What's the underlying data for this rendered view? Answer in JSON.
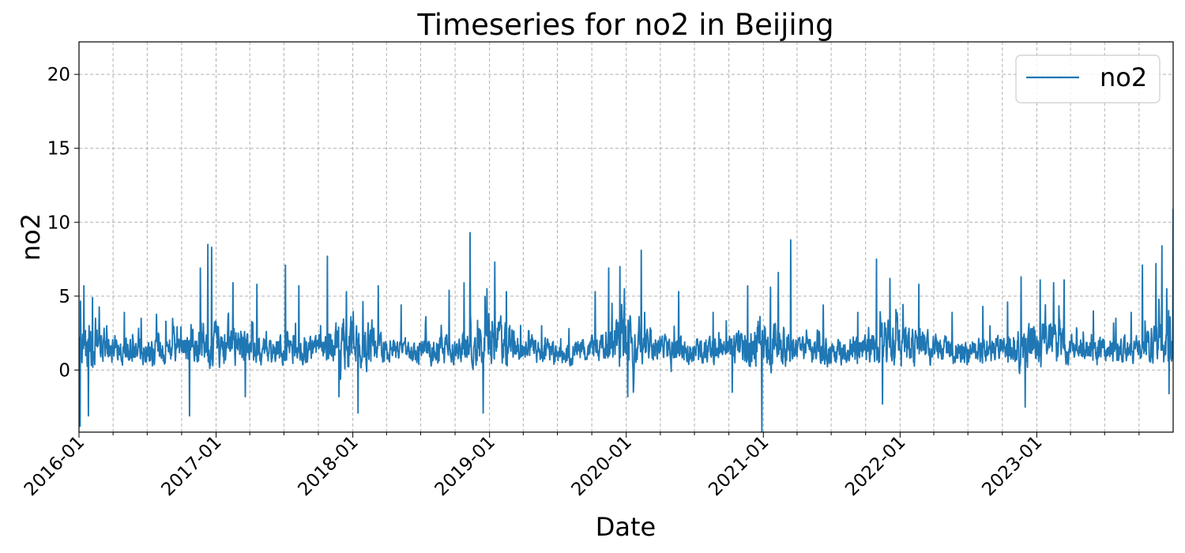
{
  "chart_data": {
    "type": "line",
    "title": "Timeseries for no2 in Beijing",
    "xlabel": "Date",
    "ylabel": "no2",
    "x_range": [
      "2016-01-01",
      "2023-12-31"
    ],
    "ylim": [
      -4.2,
      22.2
    ],
    "y_ticks": [
      0,
      5,
      10,
      15,
      20
    ],
    "x_ticks": [
      "2016-01",
      "2017-01",
      "2018-01",
      "2019-01",
      "2020-01",
      "2021-01",
      "2022-01",
      "2023-01"
    ],
    "minor_x_ticks_per_year": 4,
    "grid": true,
    "legend": {
      "position": "top-right",
      "entries": [
        "no2"
      ]
    },
    "series": [
      {
        "name": "no2",
        "color": "#1f77b4",
        "frequency": "daily",
        "start": "2016-01-01",
        "summary": {
          "typical_min": -1.5,
          "typical_max": 5.5,
          "mean": 1.5,
          "min": -4.2,
          "max": 10.9
        },
        "peaks": [
          [
            "2016-01-04",
            -3.8
          ],
          [
            "2016-01-14",
            5.7
          ],
          [
            "2016-01-26",
            -3.1
          ],
          [
            "2016-02-06",
            4.9
          ],
          [
            "2016-03-15",
            3.0
          ],
          [
            "2016-05-01",
            3.9
          ],
          [
            "2016-06-15",
            3.5
          ],
          [
            "2016-08-20",
            3.3
          ],
          [
            "2016-10-22",
            -3.1
          ],
          [
            "2016-11-20",
            6.9
          ],
          [
            "2016-12-10",
            8.5
          ],
          [
            "2016-12-20",
            8.3
          ],
          [
            "2017-02-15",
            5.9
          ],
          [
            "2017-03-20",
            -1.8
          ],
          [
            "2017-04-20",
            5.8
          ],
          [
            "2017-07-05",
            7.1
          ],
          [
            "2017-08-10",
            5.7
          ],
          [
            "2017-10-25",
            7.7
          ],
          [
            "2017-11-25",
            -1.8
          ],
          [
            "2017-12-15",
            5.3
          ],
          [
            "2018-01-15",
            -2.9
          ],
          [
            "2018-03-10",
            5.7
          ],
          [
            "2018-05-10",
            4.4
          ],
          [
            "2018-07-15",
            3.6
          ],
          [
            "2018-09-15",
            5.4
          ],
          [
            "2018-10-25",
            5.9
          ],
          [
            "2018-11-10",
            9.3
          ],
          [
            "2018-12-15",
            -2.9
          ],
          [
            "2019-01-15",
            7.3
          ],
          [
            "2019-02-15",
            5.3
          ],
          [
            "2019-05-20",
            3.0
          ],
          [
            "2019-08-01",
            2.8
          ],
          [
            "2019-10-10",
            5.3
          ],
          [
            "2019-11-15",
            6.9
          ],
          [
            "2019-12-15",
            7.0
          ],
          [
            "2020-01-05",
            -1.8
          ],
          [
            "2020-02-10",
            8.1
          ],
          [
            "2020-05-20",
            5.3
          ],
          [
            "2020-08-20",
            3.9
          ],
          [
            "2020-10-10",
            -1.5
          ],
          [
            "2020-11-20",
            5.7
          ],
          [
            "2020-12-28",
            -4.2
          ],
          [
            "2021-01-20",
            5.6
          ],
          [
            "2021-02-10",
            6.6
          ],
          [
            "2021-03-15",
            8.8
          ],
          [
            "2021-06-10",
            4.4
          ],
          [
            "2021-09-10",
            3.9
          ],
          [
            "2021-10-30",
            7.5
          ],
          [
            "2021-11-15",
            -2.3
          ],
          [
            "2021-12-05",
            6.2
          ],
          [
            "2022-02-20",
            5.8
          ],
          [
            "2022-05-20",
            3.9
          ],
          [
            "2022-08-10",
            4.3
          ],
          [
            "2022-10-15",
            4.6
          ],
          [
            "2022-11-20",
            6.3
          ],
          [
            "2022-12-01",
            -2.5
          ],
          [
            "2023-01-10",
            6.1
          ],
          [
            "2023-02-15",
            5.9
          ],
          [
            "2023-03-15",
            6.1
          ],
          [
            "2023-06-01",
            4.0
          ],
          [
            "2023-09-10",
            3.9
          ],
          [
            "2023-10-10",
            7.1
          ],
          [
            "2023-11-15",
            7.2
          ],
          [
            "2023-12-01",
            8.4
          ],
          [
            "2023-12-20",
            -1.6
          ],
          [
            "2023-12-31",
            10.9
          ]
        ]
      }
    ]
  }
}
